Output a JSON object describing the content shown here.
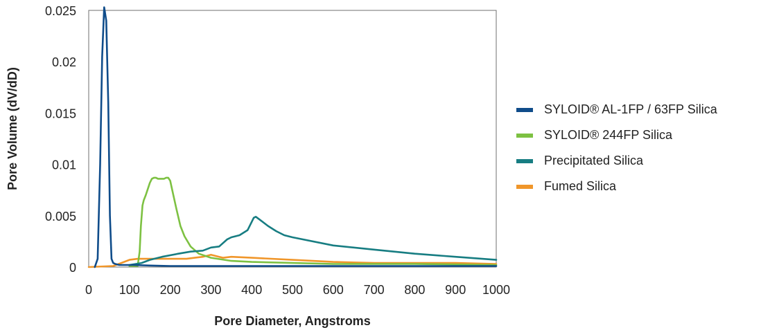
{
  "chart_data": {
    "type": "line",
    "xlabel": "Pore Diameter, Angstroms",
    "ylabel": "Pore Volume (dV/dD)",
    "xlim": [
      0,
      1000
    ],
    "ylim": [
      0,
      0.025
    ],
    "xticks": [
      0,
      100,
      200,
      300,
      400,
      500,
      600,
      700,
      800,
      900,
      1000
    ],
    "yticks": [
      {
        "value": 0,
        "label": "0"
      },
      {
        "value": 0.005,
        "label": "0.005"
      },
      {
        "value": 0.01,
        "label": "0.01"
      },
      {
        "value": 0.015,
        "label": "0.015"
      },
      {
        "value": 0.02,
        "label": "0.02"
      },
      {
        "value": 0.025,
        "label": "0.025"
      }
    ],
    "grid": false,
    "legend_position": "right",
    "series": [
      {
        "name": "SYLOID® AL-1FP / 63FP Silica",
        "color": "#0f4c8a",
        "x": [
          15,
          22,
          28,
          33,
          38,
          43,
          48,
          52,
          56,
          60,
          65,
          75,
          90,
          110,
          150,
          200,
          300,
          400,
          600,
          800,
          1000
        ],
        "y": [
          0.0,
          0.0008,
          0.01,
          0.0205,
          0.0253,
          0.024,
          0.016,
          0.005,
          0.0008,
          0.0004,
          0.0003,
          0.0002,
          0.0002,
          0.0002,
          0.00015,
          0.0001,
          0.0001,
          0.0001,
          0.0001,
          0.0001,
          0.0001
        ]
      },
      {
        "name": "SYLOID® 244FP Silica",
        "color": "#7dc142",
        "x": [
          100,
          120,
          125,
          128,
          132,
          135,
          140,
          150,
          155,
          160,
          165,
          170,
          175,
          185,
          190,
          195,
          200,
          205,
          215,
          225,
          235,
          250,
          270,
          300,
          350,
          400,
          500,
          600,
          800,
          1000
        ],
        "y": [
          0.0001,
          0.0001,
          0.0015,
          0.004,
          0.006,
          0.0065,
          0.007,
          0.0082,
          0.0086,
          0.0087,
          0.0087,
          0.0086,
          0.0086,
          0.0086,
          0.0087,
          0.0087,
          0.0084,
          0.0075,
          0.0057,
          0.004,
          0.003,
          0.002,
          0.0013,
          0.0009,
          0.0006,
          0.0005,
          0.0004,
          0.0003,
          0.0003,
          0.0002
        ]
      },
      {
        "name": "Precipitated Silica",
        "color": "#177d82",
        "x": [
          100,
          130,
          150,
          180,
          220,
          250,
          280,
          300,
          320,
          340,
          350,
          370,
          390,
          400,
          405,
          410,
          420,
          440,
          460,
          480,
          500,
          600,
          700,
          800,
          900,
          1000
        ],
        "y": [
          0.0002,
          0.0004,
          0.0007,
          0.001,
          0.0013,
          0.0015,
          0.0016,
          0.0019,
          0.002,
          0.0027,
          0.0029,
          0.0031,
          0.0036,
          0.0044,
          0.0048,
          0.0049,
          0.0046,
          0.004,
          0.0035,
          0.0031,
          0.0029,
          0.0021,
          0.0017,
          0.0013,
          0.001,
          0.0007
        ]
      },
      {
        "name": "Fumed Silica",
        "color": "#f0962a",
        "x": [
          0,
          60,
          80,
          100,
          120,
          150,
          200,
          240,
          260,
          280,
          290,
          300,
          310,
          320,
          330,
          350,
          400,
          500,
          600,
          700,
          800,
          900,
          1000
        ],
        "y": [
          0.0,
          0.0001,
          0.0004,
          0.0007,
          0.0008,
          0.0008,
          0.0008,
          0.0008,
          0.0009,
          0.001,
          0.0011,
          0.0012,
          0.0011,
          0.001,
          0.0009,
          0.001,
          0.0009,
          0.0007,
          0.0005,
          0.0004,
          0.0004,
          0.0004,
          0.0003
        ]
      }
    ]
  }
}
